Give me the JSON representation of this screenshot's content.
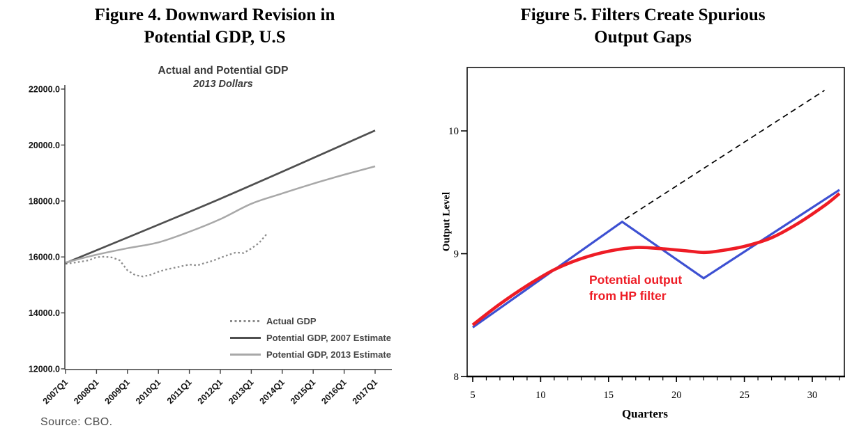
{
  "figure4": {
    "caption_line1": "Figure 4. Downward Revision in",
    "caption_line2": "Potential GDP, U.S",
    "source": "Source: CBO."
  },
  "figure5": {
    "caption_line1": "Figure 5. Filters Create Spurious",
    "caption_line2": "Output Gaps"
  },
  "chart_data": [
    {
      "type": "line",
      "title": "Actual and Potential GDP",
      "subtitle": "2013 Dollars",
      "xlabel": "",
      "ylabel": "",
      "x_axis": {
        "unit": "quarters since 2007Q1",
        "tick_positions": [
          0,
          4,
          8,
          12,
          16,
          20,
          24,
          28,
          32,
          36,
          40
        ],
        "tick_labels": [
          "2007Q1",
          "2008Q1",
          "2009Q1",
          "2010Q1",
          "2011Q1",
          "2012Q1",
          "2013Q1",
          "2014Q1",
          "2015Q1",
          "2016Q1",
          "2017Q1"
        ]
      },
      "y_axis": {
        "range": [
          12000,
          22000
        ],
        "ticks": [
          12000,
          14000,
          16000,
          18000,
          20000,
          22000
        ],
        "tick_labels": [
          "12000.0",
          "14000.0",
          "16000.0",
          "18000.0",
          "20000.0",
          "22000.0"
        ]
      },
      "series": [
        {
          "name": "Actual GDP",
          "style": "dotted",
          "color": "#8c8c8c",
          "width": 2.3,
          "smooth": false,
          "x": [
            0,
            1,
            2,
            3,
            4,
            5,
            6,
            7,
            8,
            9,
            10,
            11,
            12,
            13,
            14,
            15,
            16,
            17,
            18,
            19,
            20,
            21,
            22,
            23,
            24,
            25,
            26
          ],
          "values": [
            15750,
            15790,
            15830,
            15880,
            15990,
            16010,
            15980,
            15880,
            15520,
            15350,
            15300,
            15360,
            15470,
            15550,
            15610,
            15670,
            15730,
            15700,
            15780,
            15860,
            15970,
            16070,
            16160,
            16140,
            16300,
            16500,
            16820
          ]
        },
        {
          "name": "Potential GDP, 2007 Estimate",
          "style": "solid",
          "color": "#4f4f4f",
          "width": 2.7,
          "smooth": true,
          "x": [
            0,
            20,
            40
          ],
          "values": [
            15780,
            18080,
            20520
          ]
        },
        {
          "name": "Potential GDP, 2013 Estimate",
          "style": "solid",
          "color": "#a8a8a8",
          "width": 2.5,
          "smooth": true,
          "x": [
            0,
            4,
            8,
            12,
            16,
            20,
            24,
            28,
            32,
            36,
            40
          ],
          "values": [
            15800,
            16080,
            16310,
            16520,
            16900,
            17350,
            17900,
            18270,
            18620,
            18940,
            19240
          ]
        }
      ],
      "legend_position": "inside lower right",
      "grid": false,
      "source": "Source: CBO."
    },
    {
      "type": "line",
      "title": "",
      "xlabel": "Quarters",
      "ylabel": "Output Level",
      "x_axis": {
        "major_ticks": [
          5,
          10,
          15,
          20,
          25,
          30
        ],
        "minor_tick_step": 1,
        "range": [
          4.6,
          32.4
        ]
      },
      "y_axis": {
        "range": [
          8,
          10.52
        ],
        "ticks": [
          8,
          9,
          10
        ]
      },
      "series": [
        {
          "name": "actual-output-line",
          "style": "solid",
          "color": "#3d50d2",
          "width": 3.2,
          "smooth": false,
          "x": [
            5,
            16,
            22,
            32
          ],
          "values": [
            8.4,
            9.26,
            8.8,
            9.52
          ]
        },
        {
          "name": "pre-recession-trend-dashed",
          "style": "dashed",
          "color": "#000000",
          "width": 1.7,
          "smooth": false,
          "x": [
            16.2,
            30.9
          ],
          "values": [
            9.28,
            10.33
          ]
        },
        {
          "name": "potential-output-hp-filter",
          "style": "solid",
          "color": "#ee1c25",
          "width": 4.6,
          "smooth": true,
          "x": [
            5,
            7,
            9,
            11,
            13,
            15,
            17,
            19,
            21,
            22,
            23,
            25,
            27,
            29,
            31,
            32
          ],
          "values": [
            8.42,
            8.59,
            8.74,
            8.87,
            8.96,
            9.02,
            9.05,
            9.04,
            9.02,
            9.01,
            9.02,
            9.06,
            9.13,
            9.25,
            9.4,
            9.49
          ]
        }
      ],
      "annotation": {
        "line1": "Potential output",
        "line2": "from HP filter",
        "color": "#ee1c25"
      },
      "grid": false,
      "legend_position": "none"
    }
  ]
}
